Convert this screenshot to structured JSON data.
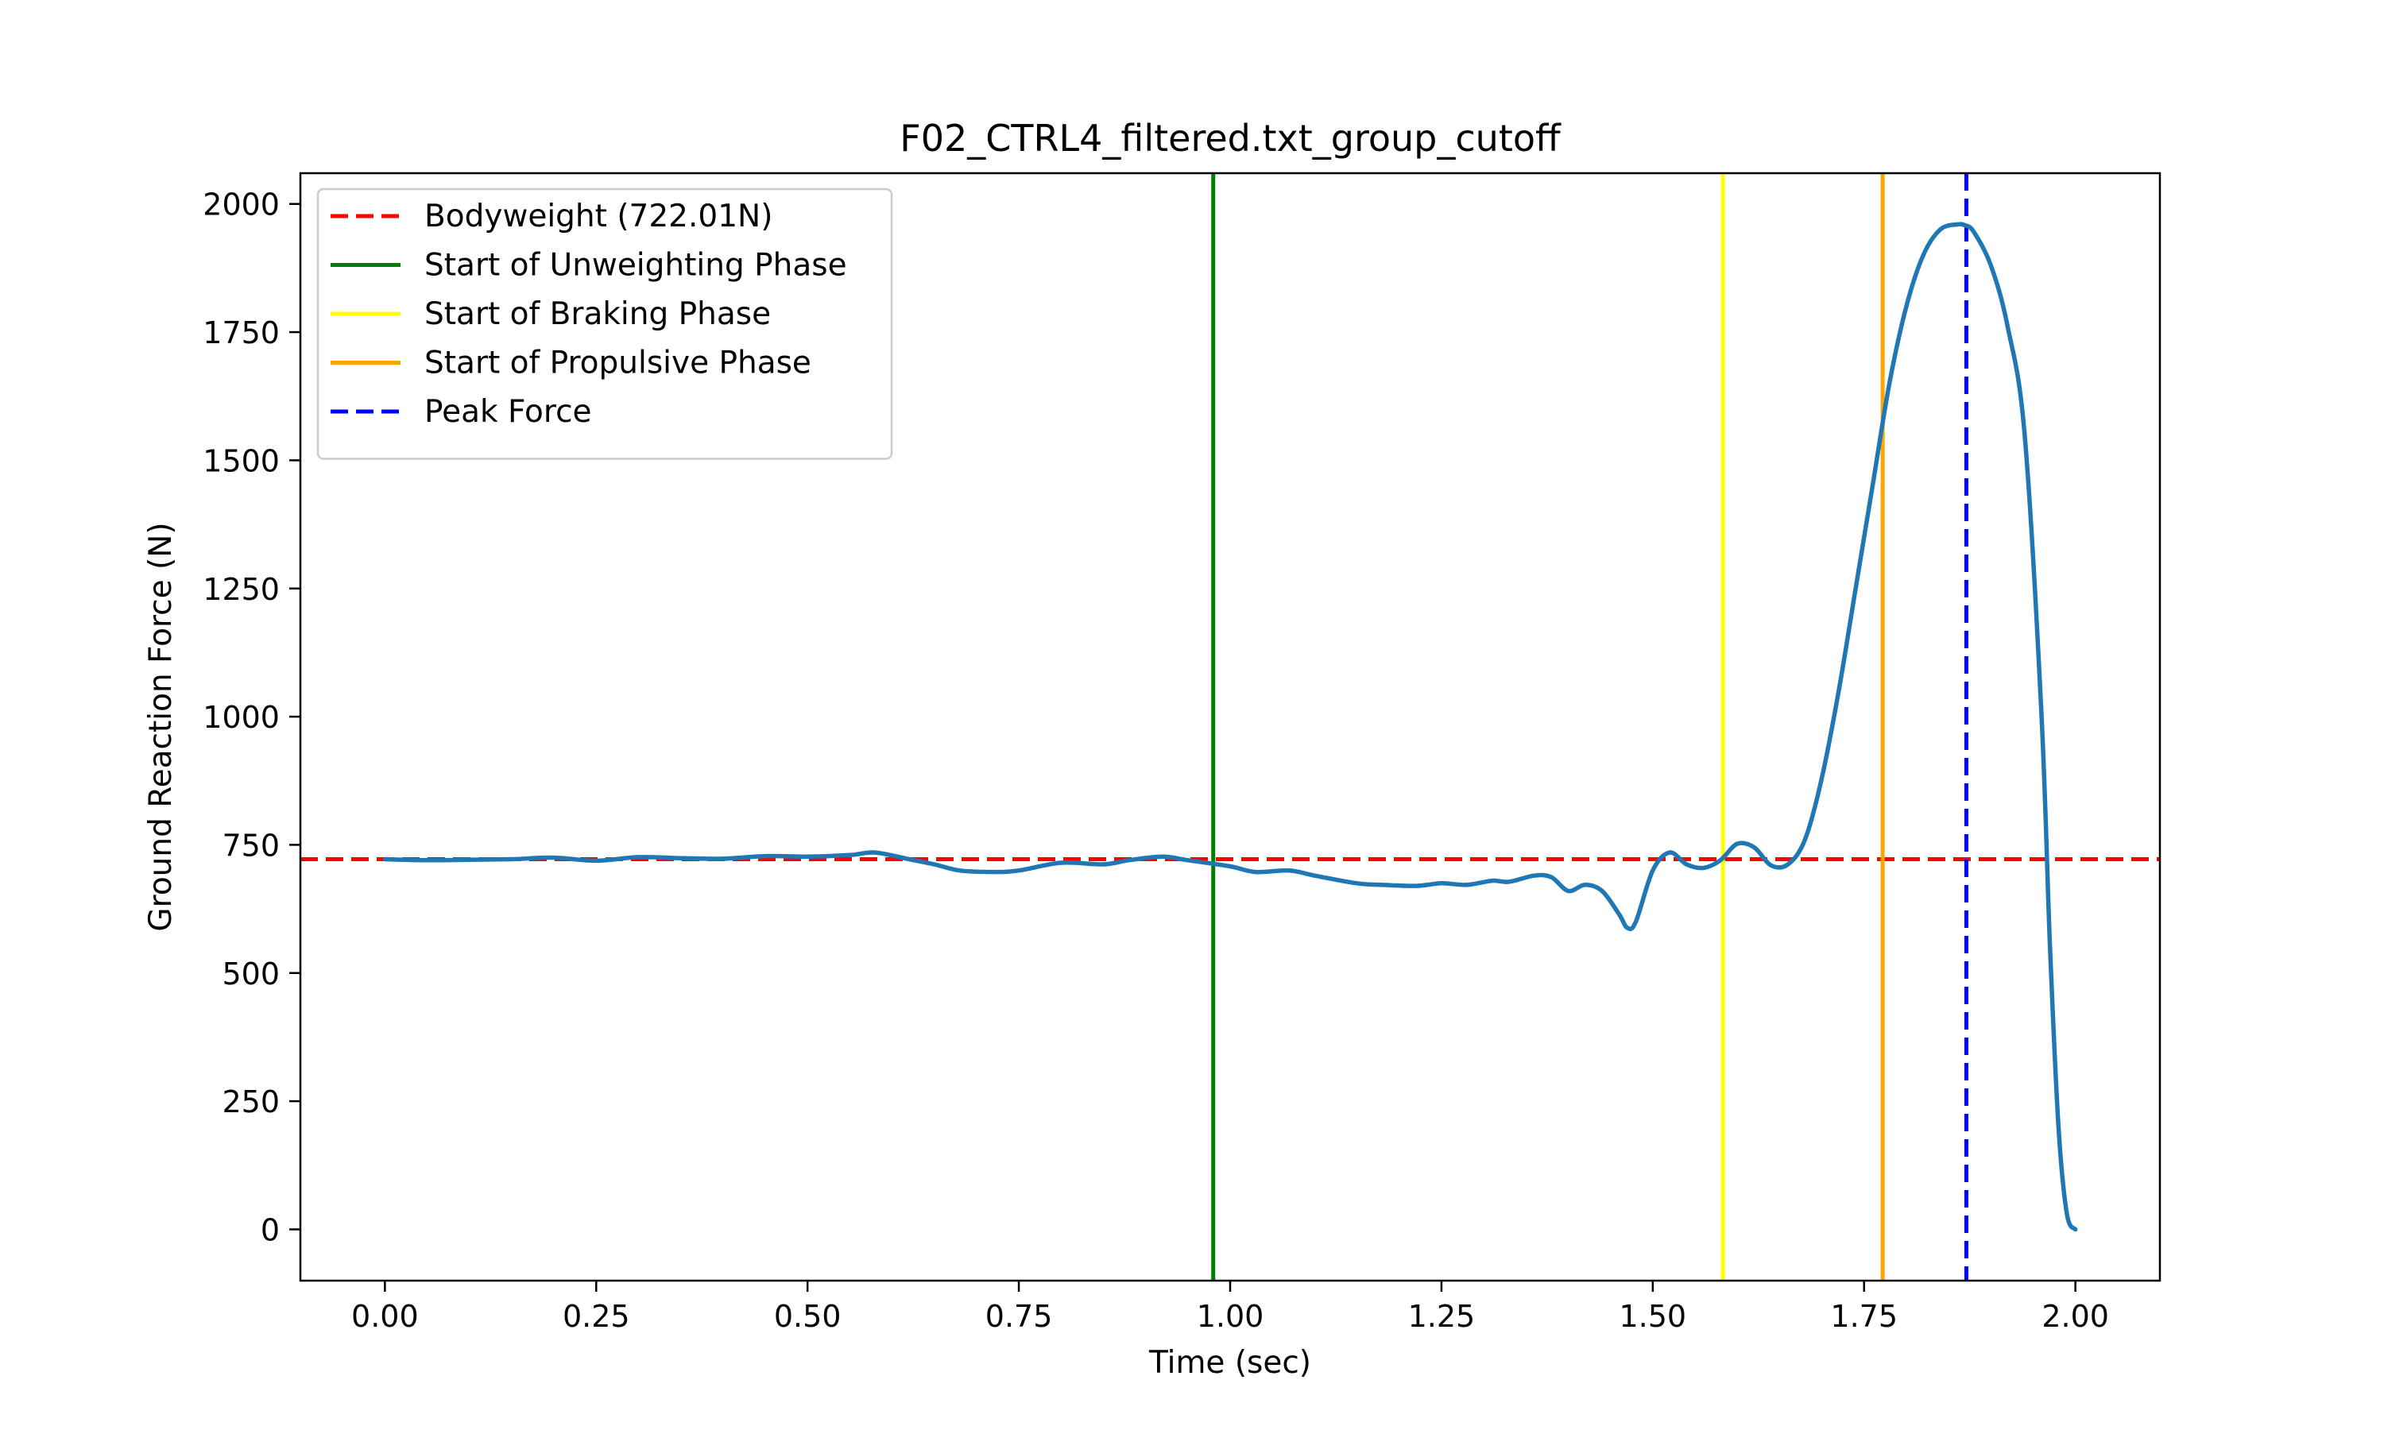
{
  "chart_data": {
    "type": "line",
    "title": "F02_CTRL4_filtered.txt_group_cutoff",
    "xlabel": "Time (sec)",
    "ylabel": "Ground Reaction Force (N)",
    "xlim": [
      -0.1,
      2.1
    ],
    "ylim": [
      -100,
      2060
    ],
    "xticks": [
      "0.00",
      "0.25",
      "0.50",
      "0.75",
      "1.00",
      "1.25",
      "1.50",
      "1.75",
      "2.00"
    ],
    "yticks": [
      "0",
      "250",
      "500",
      "750",
      "1000",
      "1250",
      "1500",
      "1750",
      "2000"
    ],
    "grid": false,
    "legend_position": "top-left",
    "series": [
      {
        "color": "#1f77b4",
        "x": [
          0.0,
          0.05,
          0.1,
          0.15,
          0.2,
          0.25,
          0.3,
          0.35,
          0.4,
          0.45,
          0.5,
          0.55,
          0.58,
          0.62,
          0.65,
          0.68,
          0.72,
          0.75,
          0.8,
          0.85,
          0.88,
          0.92,
          0.95,
          1.0,
          1.03,
          1.07,
          1.1,
          1.15,
          1.18,
          1.22,
          1.25,
          1.28,
          1.31,
          1.33,
          1.36,
          1.38,
          1.4,
          1.42,
          1.44,
          1.46,
          1.47,
          1.48,
          1.5,
          1.52,
          1.54,
          1.56,
          1.58,
          1.6,
          1.62,
          1.64,
          1.66,
          1.68,
          1.7,
          1.72,
          1.74,
          1.76,
          1.78,
          1.8,
          1.82,
          1.84,
          1.86,
          1.87,
          1.88,
          1.9,
          1.92,
          1.94,
          1.96,
          1.97,
          1.98,
          1.99,
          2.0
        ],
        "y": [
          722,
          720,
          721,
          722,
          725,
          719,
          726,
          724,
          723,
          728,
          727,
          730,
          735,
          722,
          712,
          700,
          697,
          700,
          715,
          712,
          720,
          727,
          720,
          708,
          697,
          700,
          690,
          675,
          672,
          670,
          675,
          672,
          680,
          678,
          690,
          687,
          660,
          672,
          660,
          615,
          588,
          600,
          700,
          735,
          712,
          705,
          720,
          752,
          745,
          710,
          712,
          760,
          880,
          1050,
          1250,
          1450,
          1650,
          1800,
          1900,
          1950,
          1960,
          1958,
          1945,
          1880,
          1760,
          1550,
          1000,
          550,
          200,
          30,
          0
        ]
      }
    ],
    "reference_lines": [
      {
        "label": "Bodyweight (722.01N)",
        "orientation": "horizontal",
        "value": 722.01,
        "color": "#ff0000",
        "style": "dashed"
      },
      {
        "label": "Start of Unweighting Phase",
        "orientation": "vertical",
        "value": 0.98,
        "color": "#008000",
        "style": "solid"
      },
      {
        "label": "Start of Braking Phase",
        "orientation": "vertical",
        "value": 1.583,
        "color": "#ffff00",
        "style": "solid"
      },
      {
        "label": "Start of Propulsive Phase",
        "orientation": "vertical",
        "value": 1.772,
        "color": "#ffa500",
        "style": "solid"
      },
      {
        "label": "Peak Force",
        "orientation": "vertical",
        "value": 1.871,
        "color": "#0000ff",
        "style": "dashed"
      }
    ]
  }
}
